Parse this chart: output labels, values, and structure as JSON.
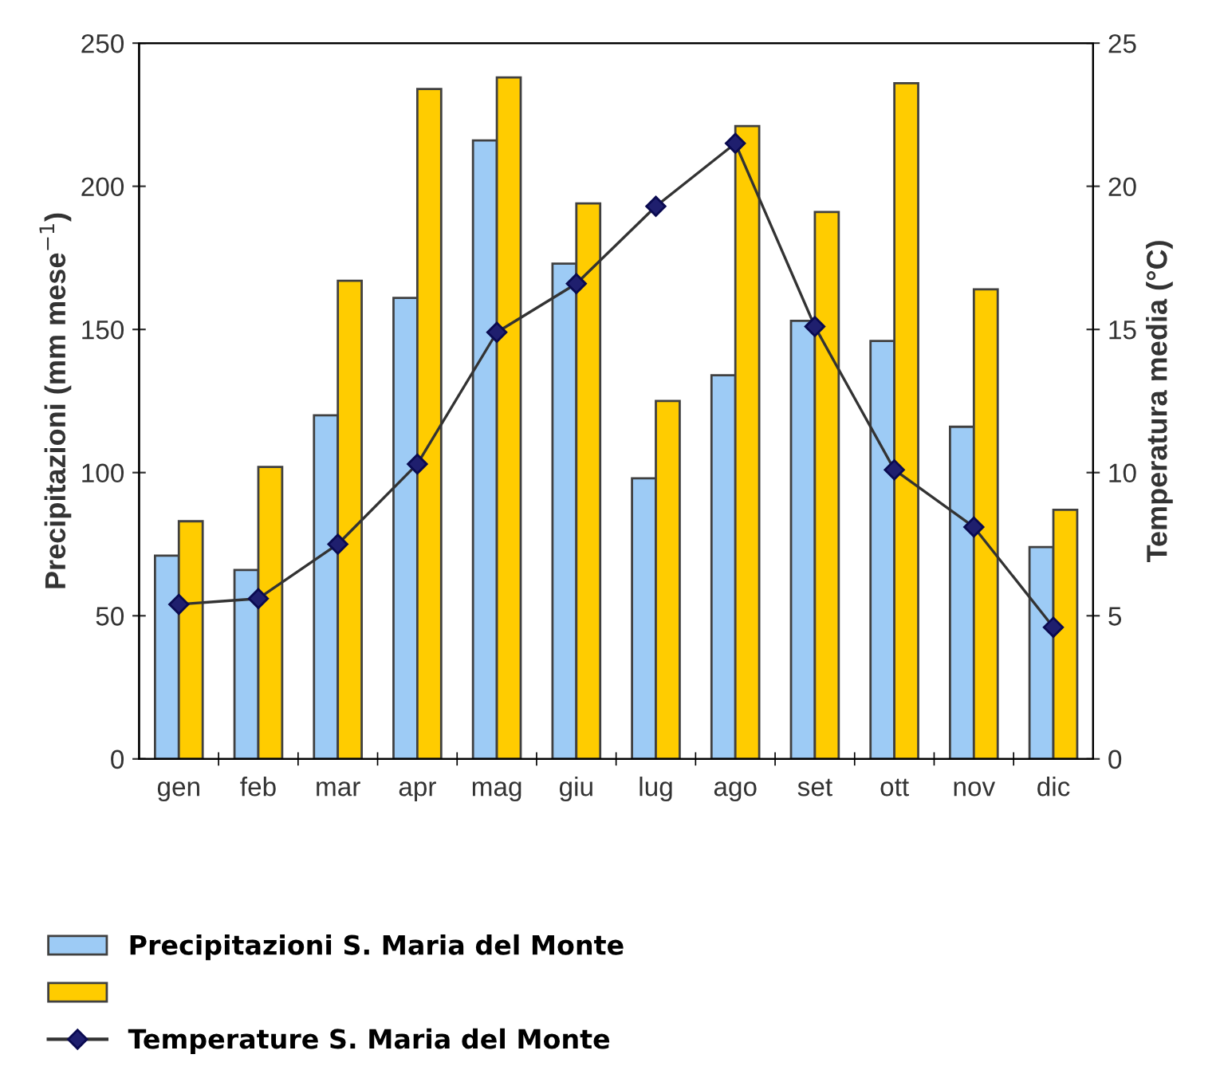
{
  "chart_data": {
    "type": "bar",
    "ylabel": "Precipitazioni (mm mese$^{−1}$)",
    "y2label": "Temperatura media (°C)",
    "categories": [
      "gen",
      "feb",
      "mar",
      "apr",
      "mag",
      "giu",
      "lug",
      "ago",
      "set",
      "ott",
      "nov",
      "dic"
    ],
    "series": [
      {
        "name": "Precipitazioni S. Maria del Monte",
        "color": "#9dcbf5",
        "values": [
          71,
          66,
          120,
          161,
          216,
          173,
          98,
          134,
          153,
          146,
          116,
          74
        ]
      },
      {
        "color": "#ffcc00",
        "values": [
          83,
          102,
          167,
          234,
          238,
          194,
          125,
          221,
          191,
          236,
          164,
          87
        ]
      },
      {
        "name": "Temperature S. Maria del Monte",
        "color": "#1f1f6e",
        "type": "line",
        "axis": "y2",
        "marker": "diamond",
        "values": [
          5.4,
          5.6,
          7.5,
          10.3,
          14.9,
          16.6,
          19.3,
          21.5,
          15.1,
          10.1,
          8.1,
          4.6
        ]
      }
    ],
    "ylim": [
      0,
      250
    ],
    "yticks": [
      0,
      50,
      100,
      150,
      200,
      250
    ],
    "y2lim": [
      0,
      25
    ],
    "y2ticks": [
      0,
      5,
      10,
      15,
      20,
      25
    ],
    "grid": false,
    "legend": "bottom"
  }
}
